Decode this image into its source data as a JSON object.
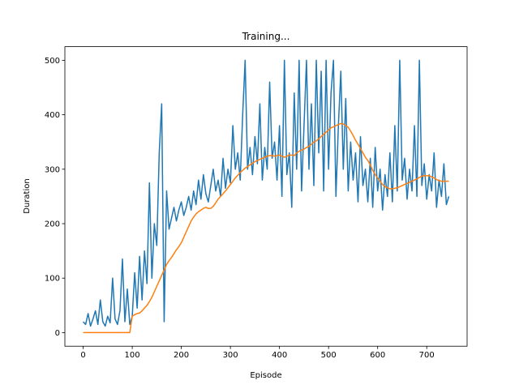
{
  "chart_data": {
    "type": "line",
    "title": "Training...",
    "x_label": "Episode",
    "y_label": "Duration",
    "x": [
      0,
      5,
      10,
      15,
      20,
      25,
      30,
      35,
      40,
      45,
      50,
      55,
      60,
      65,
      70,
      75,
      80,
      85,
      90,
      95,
      100,
      105,
      110,
      115,
      120,
      125,
      130,
      135,
      140,
      145,
      150,
      155,
      160,
      165,
      170,
      175,
      180,
      185,
      190,
      195,
      200,
      205,
      210,
      215,
      220,
      225,
      230,
      235,
      240,
      245,
      250,
      255,
      260,
      265,
      270,
      275,
      280,
      285,
      290,
      295,
      300,
      305,
      310,
      315,
      320,
      325,
      330,
      335,
      340,
      345,
      350,
      355,
      360,
      365,
      370,
      375,
      380,
      385,
      390,
      395,
      400,
      405,
      410,
      415,
      420,
      425,
      430,
      435,
      440,
      445,
      450,
      455,
      460,
      465,
      470,
      475,
      480,
      485,
      490,
      495,
      500,
      505,
      510,
      515,
      520,
      525,
      530,
      535,
      540,
      545,
      550,
      555,
      560,
      565,
      570,
      575,
      580,
      585,
      590,
      595,
      600,
      605,
      610,
      615,
      620,
      625,
      630,
      635,
      640,
      645,
      650,
      655,
      660,
      665,
      670,
      675,
      680,
      685,
      690,
      695,
      700,
      705,
      710,
      715,
      720,
      725,
      730,
      735,
      740,
      745
    ],
    "series": [
      {
        "color": "#1f77b4",
        "values": [
          20,
          15,
          35,
          12,
          25,
          40,
          15,
          60,
          20,
          12,
          30,
          18,
          100,
          25,
          15,
          40,
          135,
          20,
          80,
          15,
          30,
          110,
          45,
          140,
          60,
          150,
          90,
          275,
          100,
          200,
          160,
          330,
          420,
          20,
          260,
          190,
          210,
          230,
          205,
          225,
          240,
          215,
          230,
          250,
          225,
          260,
          235,
          280,
          245,
          290,
          255,
          240,
          270,
          300,
          260,
          280,
          250,
          320,
          265,
          300,
          275,
          380,
          300,
          330,
          280,
          400,
          500,
          300,
          340,
          290,
          360,
          310,
          420,
          280,
          340,
          300,
          460,
          320,
          350,
          280,
          380,
          250,
          500,
          290,
          330,
          230,
          440,
          300,
          500,
          260,
          380,
          500,
          300,
          420,
          270,
          500,
          330,
          480,
          260,
          500,
          300,
          440,
          500,
          250,
          380,
          480,
          300,
          430,
          260,
          350,
          280,
          330,
          240,
          360,
          270,
          300,
          240,
          320,
          230,
          340,
          260,
          300,
          225,
          290,
          250,
          330,
          240,
          380,
          260,
          500,
          280,
          320,
          245,
          300,
          260,
          380,
          250,
          500,
          270,
          310,
          245,
          290,
          260,
          330,
          230,
          280,
          250,
          310,
          235,
          250
        ]
      },
      {
        "color": "#ff7f0e",
        "values": [
          0,
          0,
          0,
          0,
          0,
          0,
          0,
          0,
          0,
          0,
          0,
          0,
          0,
          0,
          0,
          0,
          0,
          0,
          0,
          0,
          30,
          33,
          35,
          36,
          40,
          45,
          50,
          57,
          65,
          75,
          85,
          95,
          105,
          115,
          125,
          132,
          138,
          145,
          152,
          158,
          165,
          175,
          185,
          195,
          205,
          212,
          218,
          222,
          225,
          228,
          230,
          228,
          228,
          232,
          238,
          245,
          250,
          255,
          260,
          266,
          272,
          278,
          284,
          289,
          294,
          298,
          302,
          305,
          308,
          311,
          314,
          316,
          318,
          320,
          322,
          324,
          325,
          325,
          324,
          325,
          326,
          324,
          322,
          324,
          326,
          326,
          325,
          330,
          333,
          335,
          337,
          340,
          342,
          346,
          350,
          352,
          356,
          360,
          364,
          368,
          372,
          376,
          378,
          380,
          382,
          384,
          383,
          380,
          377,
          370,
          362,
          353,
          346,
          338,
          330,
          322,
          316,
          308,
          298,
          290,
          284,
          278,
          272,
          268,
          266,
          264,
          264,
          265,
          266,
          268,
          270,
          272,
          274,
          276,
          278,
          280,
          282,
          285,
          287,
          288,
          288,
          288,
          286,
          284,
          281,
          279,
          278,
          278,
          278,
          278
        ]
      }
    ],
    "xlim": [
      -37.25,
      782.25
    ],
    "ylim": [
      -25,
      525
    ],
    "xticks": [
      0,
      100,
      200,
      300,
      400,
      500,
      600,
      700
    ],
    "yticks": [
      0,
      100,
      200,
      300,
      400,
      500
    ]
  }
}
